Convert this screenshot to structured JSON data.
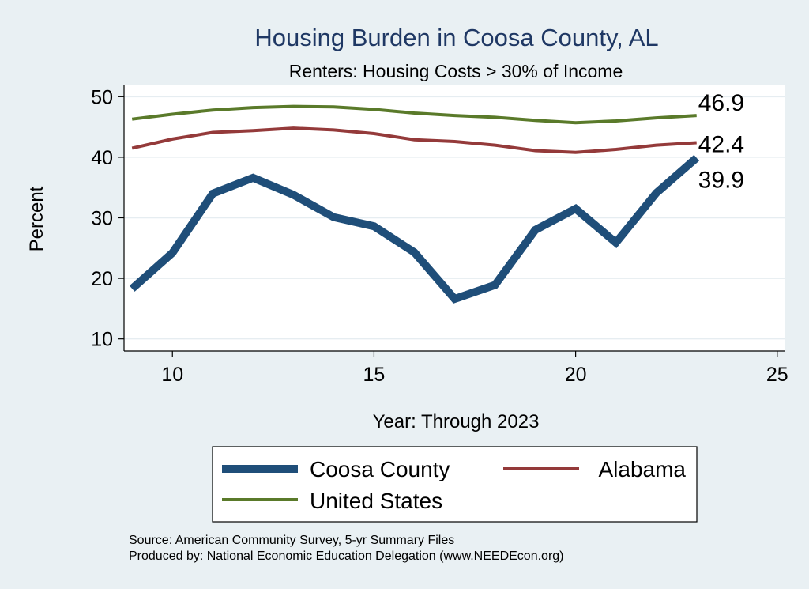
{
  "chart_data": {
    "type": "line",
    "title": "Housing Burden in Coosa County, AL",
    "subtitle": "Renters: Housing Costs > 30% of Income",
    "xlabel": "Year: Through 2023",
    "ylabel": "Percent",
    "xlim": [
      8.8,
      25.2
    ],
    "ylim": [
      8,
      52
    ],
    "xticks": [
      10,
      15,
      20,
      25
    ],
    "yticks": [
      10,
      20,
      30,
      40,
      50
    ],
    "grid": true,
    "x": [
      9,
      10,
      11,
      12,
      13,
      14,
      15,
      16,
      17,
      18,
      19,
      20,
      21,
      22,
      23
    ],
    "series": [
      {
        "name": "Coosa County",
        "color": "#1f4e79",
        "values": [
          18.3,
          24.2,
          34.0,
          36.6,
          33.8,
          30.1,
          28.6,
          24.3,
          16.6,
          18.9,
          28.0,
          31.5,
          25.9,
          34.1,
          39.9
        ],
        "end_label": "39.9"
      },
      {
        "name": "Alabama",
        "color": "#943a3a",
        "values": [
          41.5,
          43.0,
          44.1,
          44.4,
          44.8,
          44.5,
          43.9,
          42.9,
          42.6,
          42.0,
          41.1,
          40.8,
          41.3,
          42.0,
          42.4
        ],
        "end_label": "42.4"
      },
      {
        "name": "United States",
        "color": "#5a7a2a",
        "values": [
          46.3,
          47.1,
          47.8,
          48.2,
          48.4,
          48.3,
          47.9,
          47.3,
          46.9,
          46.6,
          46.1,
          45.7,
          46.0,
          46.5,
          46.9
        ],
        "end_label": "46.9"
      }
    ],
    "legend": {
      "position": "bottom",
      "items": [
        "Coosa County",
        "Alabama",
        "United States"
      ]
    },
    "source_lines": [
      "Source: American Community Survey, 5-yr Summary Files",
      "Produced by: National Economic Education Delegation (www.NEEDEcon.org)"
    ]
  }
}
